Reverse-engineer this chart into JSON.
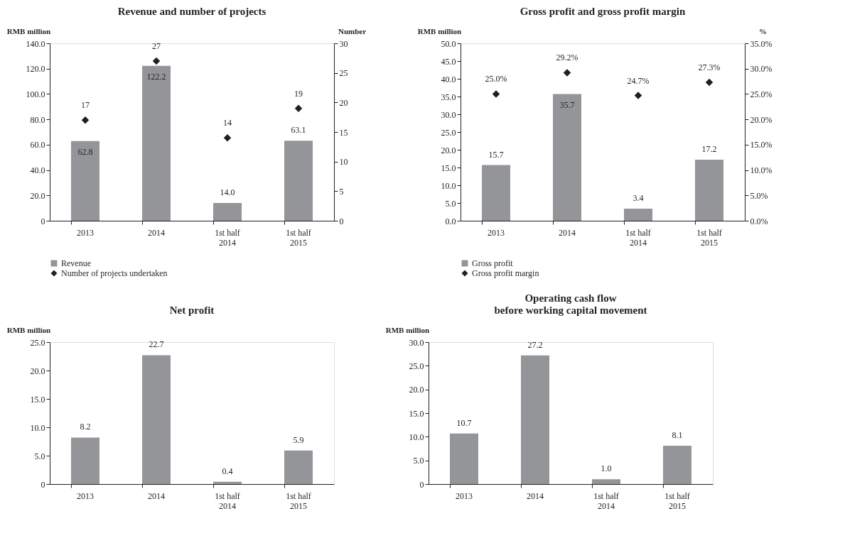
{
  "chart_data": [
    {
      "type": "bar",
      "title": "Revenue and number of projects",
      "ylabel": "RMB million",
      "y2label": "Number",
      "categories": [
        "2013",
        "2014",
        "1st half 2014",
        "1st half 2015"
      ],
      "series": [
        {
          "name": "Revenue",
          "type": "bar",
          "color": "#939598",
          "values": [
            62.8,
            122.2,
            14.0,
            63.1
          ],
          "value_labels": [
            "62.8",
            "122.2",
            "14.0",
            "63.1"
          ]
        },
        {
          "name": "Number of projects undertaken",
          "type": "scatter",
          "axis": "y2",
          "color": "#231f20",
          "values": [
            17,
            27,
            14,
            19
          ],
          "value_labels": [
            "17",
            "27",
            "14",
            "19"
          ]
        }
      ],
      "ylim": [
        0,
        140
      ],
      "yticks": [
        0,
        {
          "value": 20,
          "label": "20.0"
        },
        {
          "value": 40,
          "label": "40.0"
        },
        {
          "value": 60,
          "label": "60.0"
        },
        {
          "value": 80,
          "label": "80.0"
        },
        {
          "value": 100,
          "label": "100.0"
        },
        {
          "value": 120,
          "label": "120.0"
        },
        {
          "value": 140,
          "label": "140.0"
        }
      ],
      "y2lim": [
        0,
        30
      ],
      "y2ticks": [
        0,
        5,
        10,
        15,
        20,
        25,
        30
      ],
      "marker": "diamond",
      "legend": "bottom",
      "grid": false
    },
    {
      "type": "bar",
      "title": "Gross profit and gross profit margin",
      "ylabel": "RMB million",
      "y2label": "%",
      "categories": [
        "2013",
        "2014",
        "1st half 2014",
        "1st half 2015"
      ],
      "series": [
        {
          "name": "Gross profit",
          "type": "bar",
          "color": "#939598",
          "values": [
            15.7,
            35.7,
            3.4,
            17.2
          ],
          "value_labels": [
            "15.7",
            "35.7",
            "3.4",
            "17.2"
          ]
        },
        {
          "name": "Gross profit margin",
          "type": "scatter",
          "axis": "y2",
          "color": "#231f20",
          "values": [
            25.0,
            29.2,
            24.7,
            27.3
          ],
          "value_labels": [
            "25.0%",
            "29.2%",
            "24.7%",
            "27.3%"
          ]
        }
      ],
      "ylim": [
        0,
        50
      ],
      "yticks": [
        {
          "value": 0,
          "label": "0.0"
        },
        {
          "value": 5,
          "label": "5.0"
        },
        {
          "value": 10,
          "label": "10.0"
        },
        {
          "value": 15,
          "label": "15.0"
        },
        {
          "value": 20,
          "label": "20.0"
        },
        {
          "value": 25,
          "label": "25.0"
        },
        {
          "value": 30,
          "label": "30.0"
        },
        {
          "value": 35,
          "label": "35.0"
        },
        {
          "value": 40,
          "label": "40.0"
        },
        {
          "value": 45,
          "label": "45.0"
        },
        {
          "value": 50,
          "label": "50.0"
        }
      ],
      "y2lim": [
        0,
        35
      ],
      "y2ticks": [
        {
          "value": 0,
          "label": "0.0%"
        },
        {
          "value": 5,
          "label": "5.0%"
        },
        {
          "value": 10,
          "label": "10.0%"
        },
        {
          "value": 15,
          "label": "15.0%"
        },
        {
          "value": 20,
          "label": "20.0%"
        },
        {
          "value": 25,
          "label": "25.0%"
        },
        {
          "value": 30,
          "label": "30.0%"
        },
        {
          "value": 35,
          "label": "35.0%"
        }
      ],
      "marker": "diamond",
      "legend": "bottom",
      "grid": false
    },
    {
      "type": "bar",
      "title": "Net profit",
      "ylabel": "RMB million",
      "categories": [
        "2013",
        "2014",
        "1st half 2014",
        "1st half 2015"
      ],
      "series": [
        {
          "type": "bar",
          "color": "#939598",
          "values": [
            8.2,
            22.7,
            0.4,
            5.9
          ],
          "value_labels": [
            "8.2",
            "22.7",
            "0.4",
            "5.9"
          ]
        }
      ],
      "ylim": [
        0,
        25
      ],
      "yticks": [
        0,
        {
          "value": 5,
          "label": "5.0"
        },
        {
          "value": 10,
          "label": "10.0"
        },
        {
          "value": 15,
          "label": "15.0"
        },
        {
          "value": 20,
          "label": "20.0"
        },
        {
          "value": 25,
          "label": "25.0"
        }
      ],
      "grid": false
    },
    {
      "type": "bar",
      "title": "Operating cash flow\nbefore working capital movement",
      "ylabel": "RMB million",
      "categories": [
        "2013",
        "2014",
        "1st half 2014",
        "1st half 2015"
      ],
      "series": [
        {
          "type": "bar",
          "color": "#939598",
          "values": [
            10.7,
            27.2,
            1.0,
            8.1
          ],
          "value_labels": [
            "10.7",
            "27.2",
            "1.0",
            "8.1"
          ]
        }
      ],
      "ylim": [
        0,
        30
      ],
      "yticks": [
        0,
        {
          "value": 5,
          "label": "5.0"
        },
        {
          "value": 10,
          "label": "10.0"
        },
        {
          "value": 15,
          "label": "15.0"
        },
        {
          "value": 20,
          "label": "20.0"
        },
        {
          "value": 25,
          "label": "25.0"
        },
        {
          "value": 30,
          "label": "30.0"
        }
      ],
      "grid": false
    }
  ]
}
